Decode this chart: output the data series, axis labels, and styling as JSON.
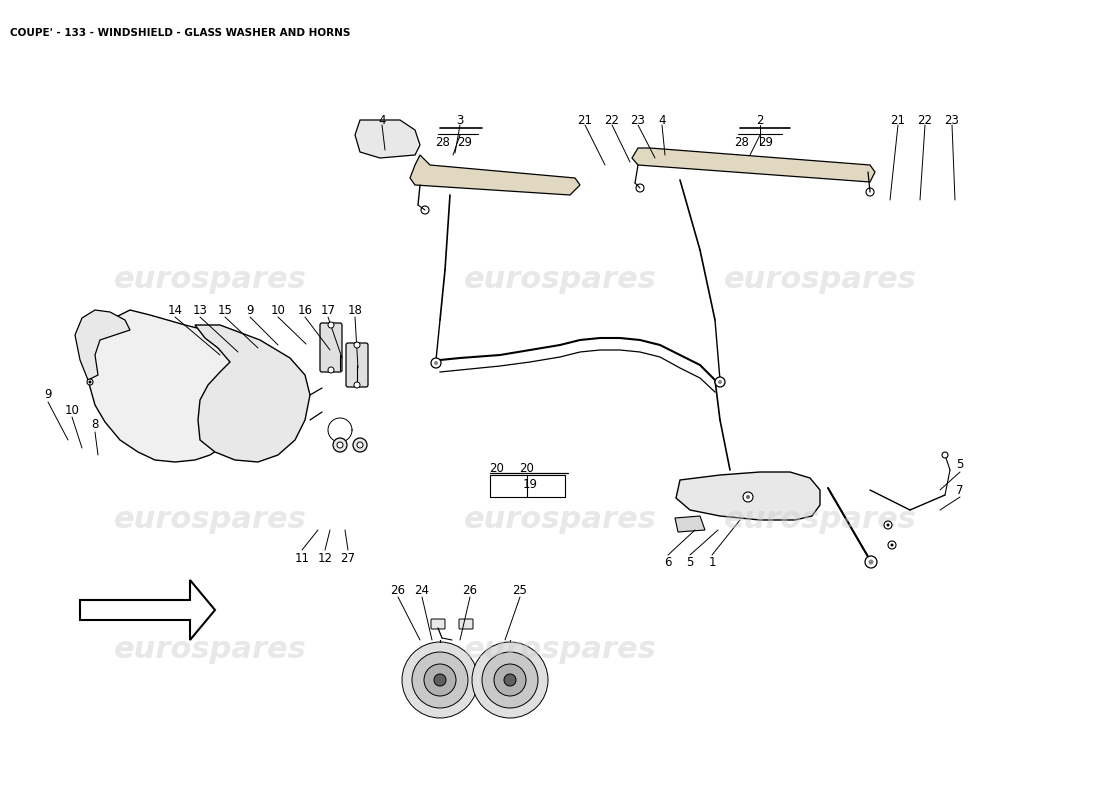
{
  "title": "COUPE' - 133 - WINDSHIELD - GLASS WASHER AND HORNS",
  "title_fontsize": 7.5,
  "bg_color": "#ffffff",
  "line_color": "#000000",
  "label_fontsize": 8.5,
  "watermark_text": "eurospares",
  "wm_color": "#cccccc",
  "wm_alpha": 0.45,
  "wm_fontsize": 22
}
